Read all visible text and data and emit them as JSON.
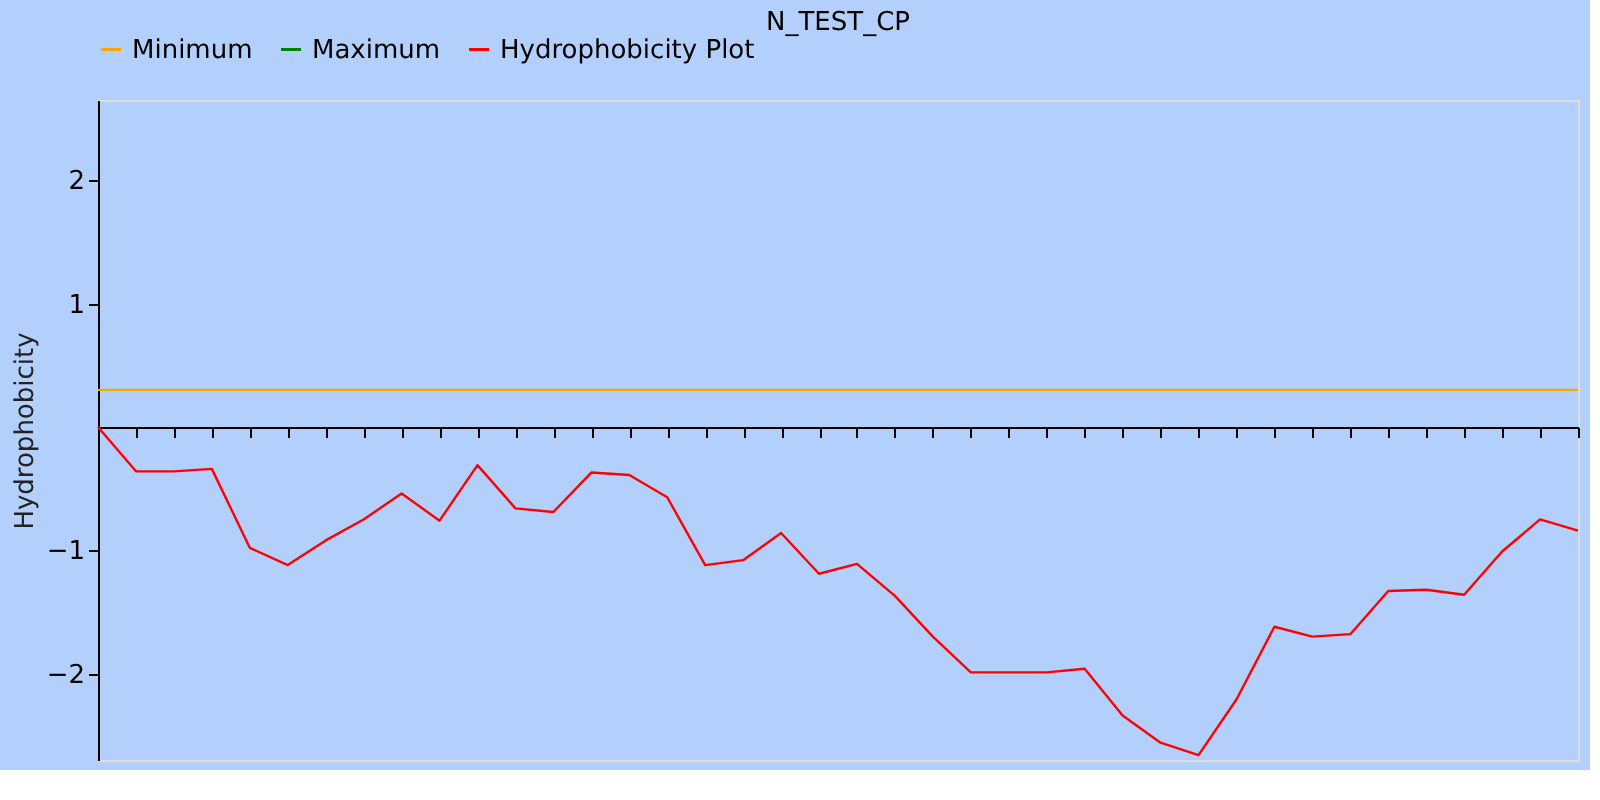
{
  "chart_data": {
    "type": "line",
    "title": "N_TEST_CP",
    "ylabel": "Hydrophobicity",
    "categories": [
      null,
      null,
      null,
      null,
      null,
      null,
      null,
      null,
      null,
      null,
      null,
      null,
      null,
      null,
      null,
      null,
      null,
      null,
      null,
      null,
      null,
      null,
      null,
      null,
      null,
      null,
      null,
      null,
      null,
      null,
      null,
      null,
      null,
      null,
      null,
      null,
      null,
      null,
      null,
      null
    ],
    "series": [
      {
        "name": "Minimum",
        "color": "#ffa500",
        "values": [
          0.3,
          0.3,
          0.3,
          0.3,
          0.3,
          0.3,
          0.3,
          0.3,
          0.3,
          0.3,
          0.3,
          0.3,
          0.3,
          0.3,
          0.3,
          0.3,
          0.3,
          0.3,
          0.3,
          0.3,
          0.3,
          0.3,
          0.3,
          0.3,
          0.3,
          0.3,
          0.3,
          0.3,
          0.3,
          0.3,
          0.3,
          0.3,
          0.3,
          0.3,
          0.3,
          0.3,
          0.3,
          0.3,
          0.3,
          0.3
        ]
      },
      {
        "name": "Maximum",
        "color": "#008000",
        "values": [
          null,
          null,
          null,
          null,
          null,
          null,
          null,
          null,
          null,
          null,
          null,
          null,
          null,
          null,
          null,
          null,
          null,
          null,
          null,
          null,
          null,
          null,
          null,
          null,
          null,
          null,
          null,
          null,
          null,
          null,
          null,
          null,
          null,
          null,
          null,
          null,
          null,
          null,
          null,
          null
        ]
      },
      {
        "name": "Hydrophobicity Plot",
        "color": "#ff0000",
        "values": [
          0,
          -0.36,
          -0.36,
          -0.34,
          -0.98,
          -1.12,
          -0.92,
          -0.75,
          -0.54,
          -0.76,
          -0.31,
          -0.66,
          -0.69,
          -0.37,
          -0.39,
          -0.57,
          -1.12,
          -1.08,
          -0.86,
          -1.19,
          -1.11,
          -1.37,
          -1.7,
          -1.99,
          -1.99,
          -1.99,
          -1.96,
          -2.34,
          -2.56,
          -2.66,
          -2.21,
          -1.62,
          -1.7,
          -1.68,
          -1.33,
          -1.32,
          -1.36,
          -1.01,
          -0.75,
          -0.84
        ]
      }
    ],
    "ylim": [
      -2.7,
      2.65
    ],
    "yticks": [
      -2,
      -1,
      1,
      2
    ],
    "tick_labels": "y",
    "grid": false,
    "legend": "top",
    "marker": "none",
    "line_style": "solid"
  }
}
